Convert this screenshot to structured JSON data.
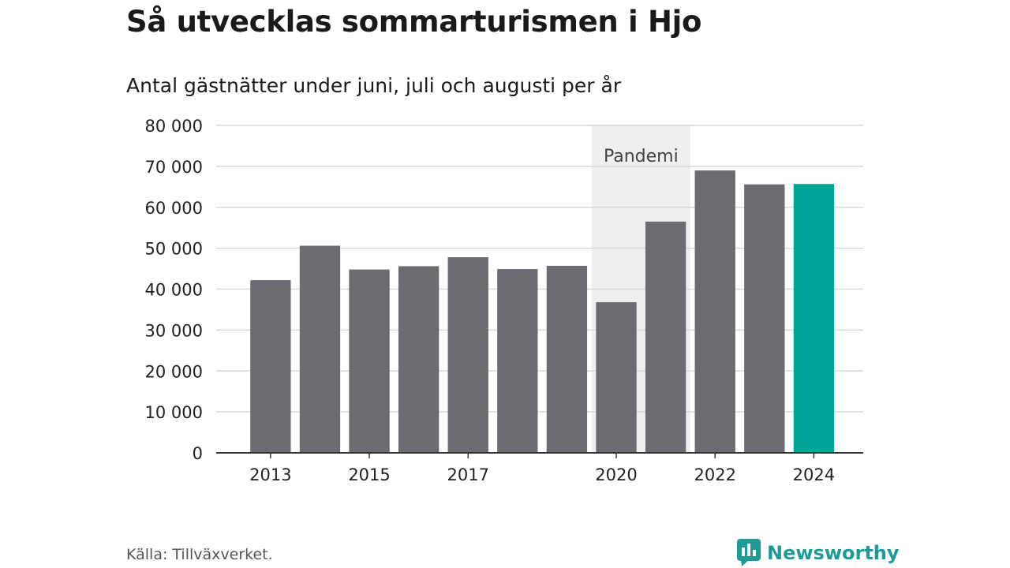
{
  "colors": {
    "bar": "#6c6b71",
    "highlight": "#00a398",
    "band": "#efefef",
    "grid": "#dadada",
    "axis": "#333333",
    "brand": "#1e9b96"
  },
  "chart_data": {
    "type": "bar",
    "title": "Så utvecklas sommarturismen i Hjo",
    "subtitle": "Antal gästnätter under juni, juli och augusti per år",
    "categories": [
      "2013",
      "2014",
      "2015",
      "2016",
      "2017",
      "2018",
      "2019",
      "2020",
      "2021",
      "2022",
      "2023",
      "2024"
    ],
    "values": [
      42200,
      50600,
      44800,
      45600,
      47800,
      44900,
      45700,
      36800,
      56500,
      69000,
      65600,
      65700
    ],
    "x_tick_labels": [
      "2013",
      "",
      "2015",
      "",
      "2017",
      "",
      "",
      "2020",
      "",
      "2022",
      "",
      "2024"
    ],
    "highlight_index": 11,
    "ylim": [
      0,
      80000
    ],
    "yticks": [
      0,
      10000,
      20000,
      30000,
      40000,
      50000,
      60000,
      70000,
      80000
    ],
    "ytick_labels": [
      "0",
      "10 000",
      "20 000",
      "30 000",
      "40 000",
      "50 000",
      "60 000",
      "70 000",
      "80 000"
    ],
    "grid": true,
    "annotation": {
      "label": "Pandemi",
      "from_index": 7,
      "to_index": 8
    }
  },
  "footer": {
    "source": "Källa: Tillväxverket.",
    "brand": "Newsworthy"
  },
  "icons": {
    "brand_logo": "newsworthy-logo-icon"
  }
}
